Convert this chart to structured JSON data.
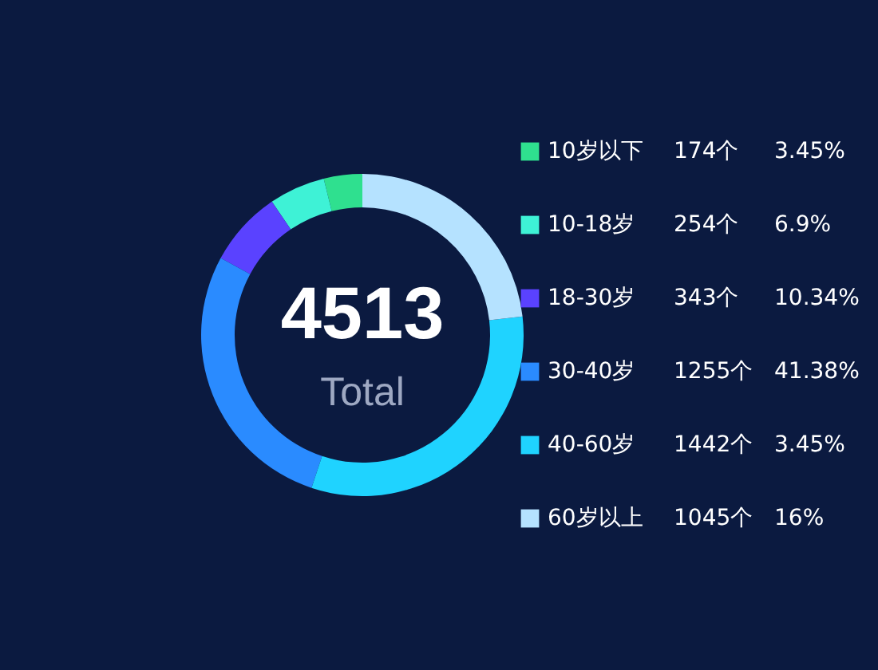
{
  "chart_data": {
    "type": "donut",
    "title": "4513",
    "subtitle": "Total",
    "categories": [
      "10岁以下",
      "10-18岁",
      "18-30岁",
      "30-40岁",
      "40-60岁",
      "60岁以上"
    ],
    "values": [
      174,
      254,
      343,
      1255,
      1442,
      1045
    ],
    "value_labels": [
      "174个",
      "254个",
      "343个",
      "1255个",
      "1442个",
      "1045个"
    ],
    "annotations": [
      "3.45%",
      "6.9%",
      "10.34%",
      "41.38%",
      "3.45%",
      "16%"
    ],
    "colors": [
      "#2fe08f",
      "#3ef2d6",
      "#5a42ff",
      "#2a8bff",
      "#1fd3ff",
      "#b5e2ff"
    ],
    "legend": "right"
  }
}
